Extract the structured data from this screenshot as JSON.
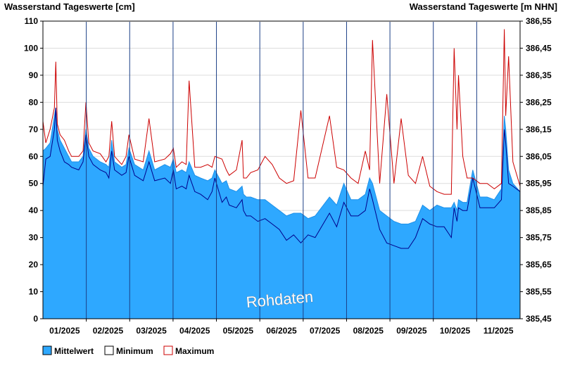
{
  "chart_data": {
    "type": "area",
    "title_left": "Wasserstand Tageswerte [cm]",
    "title_right": "Wasserstand Tageswerte [m NHN]",
    "watermark": "Rohdaten",
    "x_ticks": [
      "01/2025",
      "02/2025",
      "03/2025",
      "04/2025",
      "05/2025",
      "06/2025",
      "07/2025",
      "08/2025",
      "09/2025",
      "10/2025",
      "11/2025"
    ],
    "ylim": [
      0,
      110
    ],
    "y_ticks": [
      0,
      10,
      20,
      30,
      40,
      50,
      60,
      70,
      80,
      90,
      100,
      110
    ],
    "y2lim": [
      385.45,
      386.55
    ],
    "y2_ticks": [
      "385,45",
      "385,55",
      "385,65",
      "385,75",
      "385,85",
      "385,95",
      "386,05",
      "386,15",
      "386,25",
      "386,35",
      "386,45",
      "386,55"
    ],
    "xlim": [
      0,
      333
    ],
    "legend": {
      "placement": "bottom-left"
    },
    "colors": {
      "mean_fill": "#2EA8FF",
      "mean_line": "#1E90E8",
      "minimum": "#00008B",
      "maximum": "#CC0000",
      "grid": "#dddddd"
    },
    "series": [
      {
        "name": "Mittelwert",
        "x": [
          0,
          2,
          5,
          8,
          9,
          10,
          12,
          15,
          18,
          20,
          25,
          28,
          30,
          32,
          35,
          40,
          44,
          46,
          48,
          50,
          55,
          58,
          60,
          64,
          70,
          74,
          78,
          85,
          89,
          91,
          93,
          97,
          100,
          102,
          106,
          110,
          115,
          118,
          120,
          125,
          128,
          130,
          135,
          139,
          140,
          142,
          145,
          150,
          155,
          160,
          165,
          170,
          175,
          180,
          185,
          190,
          200,
          205,
          210,
          215,
          220,
          225,
          228,
          230,
          235,
          240,
          245,
          250,
          255,
          260,
          265,
          270,
          275,
          280,
          285,
          287,
          289,
          290,
          293,
          296,
          300,
          305,
          310,
          315,
          320,
          322,
          323,
          325,
          328,
          333
        ],
        "y": [
          62,
          63,
          65,
          75,
          78,
          70,
          66,
          63,
          60,
          58,
          58,
          60,
          70,
          63,
          60,
          58,
          57,
          56,
          66,
          58,
          56,
          57,
          63,
          57,
          55,
          62,
          55,
          57,
          56,
          59,
          54,
          55,
          54,
          58,
          53,
          52,
          51,
          52,
          55,
          50,
          51,
          48,
          47,
          49,
          46,
          45,
          45,
          44,
          44,
          42,
          40,
          38,
          39,
          39,
          37,
          38,
          45,
          42,
          50,
          44,
          44,
          46,
          52,
          50,
          40,
          38,
          36,
          35,
          35,
          36,
          42,
          40,
          42,
          41,
          41,
          43,
          40,
          44,
          43,
          43,
          55,
          45,
          45,
          44,
          48,
          75,
          70,
          55,
          50,
          47
        ]
      },
      {
        "name": "Minimum",
        "x": [
          0,
          2,
          5,
          8,
          9,
          10,
          12,
          15,
          18,
          20,
          25,
          28,
          30,
          32,
          35,
          40,
          44,
          46,
          48,
          50,
          55,
          58,
          60,
          64,
          70,
          74,
          78,
          85,
          89,
          91,
          93,
          97,
          100,
          102,
          106,
          110,
          115,
          118,
          120,
          125,
          128,
          130,
          135,
          139,
          140,
          142,
          145,
          150,
          155,
          160,
          165,
          170,
          175,
          180,
          185,
          190,
          200,
          205,
          210,
          215,
          220,
          225,
          228,
          230,
          235,
          240,
          245,
          250,
          255,
          260,
          265,
          270,
          275,
          280,
          285,
          287,
          289,
          290,
          293,
          296,
          300,
          305,
          310,
          315,
          320,
          322,
          323,
          325,
          328,
          333
        ],
        "y": [
          49,
          59,
          60,
          70,
          78,
          66,
          62,
          58,
          57,
          56,
          55,
          58,
          68,
          60,
          57,
          55,
          54,
          52,
          62,
          55,
          53,
          54,
          60,
          53,
          51,
          58,
          51,
          52,
          50,
          55,
          48,
          49,
          48,
          53,
          47,
          46,
          44,
          47,
          52,
          43,
          45,
          42,
          41,
          44,
          40,
          38,
          38,
          36,
          37,
          35,
          33,
          29,
          31,
          28,
          31,
          30,
          39,
          34,
          43,
          38,
          38,
          40,
          48,
          44,
          33,
          28,
          27,
          26,
          26,
          30,
          37,
          35,
          34,
          34,
          30,
          41,
          36,
          41,
          40,
          40,
          52,
          41,
          41,
          41,
          44,
          70,
          65,
          50,
          49,
          47
        ]
      },
      {
        "name": "Maximum",
        "x": [
          0,
          2,
          5,
          8,
          9,
          10,
          12,
          15,
          18,
          20,
          25,
          28,
          30,
          32,
          35,
          40,
          44,
          46,
          48,
          50,
          55,
          58,
          60,
          64,
          70,
          74,
          78,
          85,
          89,
          91,
          93,
          97,
          100,
          102,
          106,
          110,
          115,
          118,
          120,
          125,
          128,
          130,
          135,
          139,
          140,
          142,
          145,
          150,
          155,
          160,
          165,
          170,
          175,
          180,
          185,
          190,
          200,
          205,
          210,
          215,
          220,
          225,
          228,
          230,
          235,
          240,
          245,
          250,
          255,
          260,
          265,
          270,
          275,
          280,
          285,
          287,
          289,
          290,
          293,
          296,
          300,
          305,
          310,
          315,
          320,
          322,
          323,
          325,
          328,
          333
        ],
        "y": [
          73,
          65,
          70,
          78,
          95,
          72,
          68,
          66,
          62,
          60,
          60,
          62,
          80,
          65,
          62,
          61,
          58,
          60,
          73,
          60,
          57,
          60,
          68,
          59,
          58,
          74,
          58,
          59,
          61,
          63,
          56,
          58,
          57,
          88,
          56,
          56,
          57,
          56,
          60,
          59,
          55,
          53,
          55,
          66,
          52,
          52,
          54,
          55,
          60,
          57,
          52,
          50,
          51,
          77,
          52,
          52,
          75,
          56,
          55,
          52,
          50,
          62,
          55,
          103,
          50,
          83,
          50,
          74,
          53,
          50,
          60,
          49,
          47,
          46,
          46,
          100,
          70,
          90,
          60,
          52,
          52,
          50,
          50,
          48,
          50,
          107,
          75,
          97,
          58,
          49
        ]
      }
    ]
  }
}
